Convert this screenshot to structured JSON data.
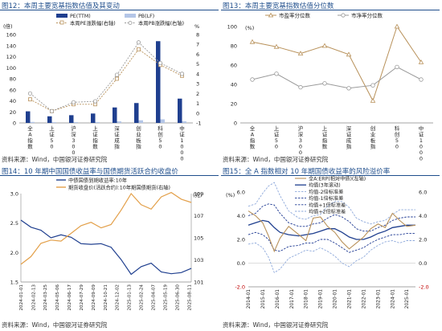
{
  "panels": {
    "p12": {
      "title": "图12：本周主要宽基指数估值及其变动",
      "source": "资料来源：Wind，中国银河证券研究院"
    },
    "p13": {
      "title": "图13：本周主要宽基指数估值分位数",
      "source": "资料来源：Wind，中国银河证券研究院"
    },
    "p14": {
      "title": "图14：10 年期中国国债收益率与国债期货活跃合约收盘价",
      "source": "资料来源：Wind，中国银河证券研究院"
    },
    "p15": {
      "title": "图15：全 A 指数相对 10 年期国债收益率的风险溢价率",
      "source": "资料来源：Wind，中国银河证券研究院"
    }
  },
  "colors": {
    "navy": "#1f3f8f",
    "lightblue": "#b4c6e7",
    "gold": "#b8915a",
    "gray": "#9a9a9a",
    "orange": "#e3a04a",
    "red": "#c00000",
    "dashnavy": "#1f3a93",
    "dashlight": "#8ea9db"
  },
  "chart_data": [
    {
      "id": "p12",
      "type": "bar",
      "categories": [
        "全A指数",
        "上证50",
        "沪深300",
        "上证指数",
        "深证成指",
        "创业板指",
        "科创50",
        "中证1000"
      ],
      "ylabel_left": "(倍)",
      "ylabel_right": "%",
      "ylim": [
        0,
        160
      ],
      "yticks": [
        0,
        20,
        40,
        60,
        80,
        100,
        120,
        140,
        160
      ],
      "y2lim": [
        -1,
        8
      ],
      "y2ticks": [
        -1,
        0,
        1,
        2,
        3,
        4,
        5,
        6,
        7,
        8
      ],
      "legend": [
        "PE(TTM)",
        "PB(LF)",
        "本周PE涨跌幅(右轴)",
        "本周PB涨跌幅(右轴)"
      ],
      "series": [
        {
          "name": "PE(TTM)",
          "values": [
            21,
            12,
            14,
            17,
            28,
            36,
            148,
            44
          ]
        },
        {
          "name": "PB(LF)",
          "values": [
            1.8,
            1.3,
            1.5,
            1.6,
            2.8,
            4.8,
            6.5,
            2.8
          ]
        },
        {
          "name": "本周PE涨跌幅(右轴)",
          "values": [
            1.4,
            0.2,
            0.9,
            0.9,
            3.5,
            6.5,
            4.9,
            3.8
          ]
        },
        {
          "name": "本周PB涨跌幅(右轴)",
          "values": [
            2.0,
            0.2,
            1.1,
            1.2,
            3.9,
            7.2,
            5.1,
            4.0
          ]
        }
      ]
    },
    {
      "id": "p13",
      "type": "line",
      "categories": [
        "全A指数",
        "上证50",
        "沪深300",
        "上证指数",
        "深证成指",
        "创业板指",
        "科创50",
        "中证1000"
      ],
      "ylabel": "(%)",
      "ylim": [
        0,
        100
      ],
      "yticks": [
        0,
        20,
        40,
        60,
        80,
        100
      ],
      "legend": [
        "市盈率分位数",
        "市净率分位数"
      ],
      "series": [
        {
          "name": "市盈率分位数",
          "values": [
            84,
            79,
            72,
            80,
            71,
            23,
            100,
            63
          ]
        },
        {
          "name": "市净率分位数",
          "values": [
            45,
            51,
            37,
            41,
            36,
            39,
            58,
            45
          ]
        }
      ]
    },
    {
      "id": "p14",
      "type": "line",
      "x": [
        "2024-01-01",
        "2024-02-05",
        "2024-03-11",
        "2024-04-15",
        "2024-05-20",
        "2024-06-24",
        "2024-07-29",
        "2024-09-02",
        "2024-10-07",
        "2024-11-11",
        "2024-12-16",
        "2025-01-20",
        "2025-02-24",
        "2025-03-31",
        "2025-05-05",
        "2025-06-09",
        "2025-07-14",
        "2025-08-18"
      ],
      "xticklabels": [
        "2024-01-01",
        "2024-02-13",
        "2024-03-25",
        "2024-05-06",
        "2024-06-17",
        "2024-07-29",
        "2024-09-09",
        "2024-10-21",
        "2024-12-02",
        "2025-01-13",
        "2025-02-24",
        "2025-04-07",
        "2025-05-19",
        "2025-06-30",
        "2025-08-11"
      ],
      "ylabel_right": "(元)",
      "ylim": [
        1.5,
        3.0
      ],
      "yticks": [
        1.5,
        2.0,
        2.5,
        3.0
      ],
      "y2lim": [
        101,
        109
      ],
      "y2ticks": [
        101,
        103,
        105,
        107,
        109
      ],
      "legend": [
        "中债国债到期收益率:10年",
        "期货收盘价(活跃合约):10年期国债期货(右轴)"
      ],
      "series": [
        {
          "name": "中债国债到期收益率:10年",
          "values": [
            2.55,
            2.43,
            2.38,
            2.25,
            2.3,
            2.26,
            2.15,
            2.14,
            2.15,
            2.09,
            1.88,
            1.63,
            1.76,
            1.82,
            1.67,
            1.64,
            1.66,
            1.73
          ]
        },
        {
          "name": "期货收盘价(活跃合约):10年期国债期货(右轴)",
          "values": [
            102.6,
            103.3,
            104.5,
            104.8,
            104.7,
            105.4,
            106.1,
            106.4,
            105.9,
            106.2,
            107.5,
            109.0,
            108.0,
            107.6,
            108.7,
            109.1,
            108.5,
            108.2
          ]
        }
      ]
    },
    {
      "id": "p15",
      "type": "line",
      "x": [
        2014.0,
        2014.5,
        2015.0,
        2015.4,
        2015.8,
        2016.2,
        2016.8,
        2017.5,
        2018.0,
        2018.5,
        2019.0,
        2019.5,
        2020.0,
        2020.5,
        2021.0,
        2021.5,
        2022.0,
        2022.5,
        2023.0,
        2023.5,
        2024.0,
        2024.5,
        2025.0,
        2025.6
      ],
      "xticklabels": [
        "2014-01",
        "2015-01",
        "2016-01",
        "2017-01",
        "2018-01",
        "2019-01",
        "2020-01",
        "2021-01",
        "2022-01",
        "2023-01",
        "2024-01",
        "2025-01"
      ],
      "ylabel_left": "(%)",
      "ylim": [
        -2.0,
        6.0
      ],
      "yticks": [
        -2.0,
        0.0,
        2.0,
        4.0,
        6.0
      ],
      "y2lim": [
        -2.0,
        6.0
      ],
      "y2ticks": [
        -2.0,
        0.0,
        2.0,
        4.0,
        6.0
      ],
      "legend": [
        "全A:ERP(相对中债)(左轴)",
        "均值(3年滚动)",
        "均值-2倍标准差",
        "均值-1倍标准差",
        "均值+1倍标准差",
        "均值+2倍标准差"
      ],
      "series": [
        {
          "name": "全A:ERP(相对中债)(左轴)",
          "values": [
            4.4,
            4.0,
            3.4,
            2.3,
            1.0,
            2.1,
            3.1,
            2.4,
            1.9,
            3.8,
            3.9,
            3.1,
            2.6,
            1.8,
            1.2,
            1.7,
            2.2,
            2.9,
            3.3,
            3.0,
            4.2,
            3.6,
            3.1,
            3.2
          ]
        },
        {
          "name": "均值(3年滚动)",
          "values": [
            3.2,
            3.4,
            3.6,
            3.5,
            3.0,
            2.6,
            2.4,
            2.3,
            2.4,
            2.5,
            2.7,
            2.9,
            2.9,
            2.6,
            2.2,
            2.0,
            2.0,
            2.2,
            2.5,
            2.7,
            3.0,
            3.1,
            3.2,
            3.2
          ]
        },
        {
          "name": "均值-2倍标准差",
          "values": [
            1.6,
            1.7,
            1.3,
            0.5,
            -0.8,
            -0.5,
            0.4,
            0.8,
            1.1,
            1.0,
            1.3,
            1.0,
            0.6,
            0.0,
            -0.3,
            0.2,
            0.5,
            1.1,
            1.5,
            1.8,
            1.9,
            1.7,
            1.9,
            1.9
          ]
        },
        {
          "name": "均值-1倍标准差",
          "values": [
            2.4,
            2.6,
            2.4,
            2.0,
            1.1,
            1.0,
            1.4,
            1.5,
            1.7,
            1.7,
            2.0,
            2.0,
            1.7,
            1.3,
            0.9,
            1.1,
            1.3,
            1.7,
            2.0,
            2.2,
            2.4,
            2.4,
            2.5,
            2.5
          ]
        },
        {
          "name": "均值+1倍标准差",
          "values": [
            4.0,
            4.2,
            4.8,
            5.0,
            4.9,
            4.2,
            3.4,
            3.1,
            3.1,
            3.3,
            3.4,
            3.8,
            4.1,
            3.9,
            3.5,
            2.9,
            2.7,
            2.7,
            3.0,
            3.2,
            3.6,
            3.8,
            3.9,
            3.9
          ]
        },
        {
          "name": "均值+2倍标准差",
          "values": [
            4.8,
            5.0,
            5.9,
            6.5,
            6.8,
            5.7,
            4.4,
            3.8,
            3.7,
            4.0,
            4.1,
            4.8,
            5.2,
            5.2,
            4.7,
            3.8,
            3.5,
            3.3,
            3.5,
            3.6,
            4.1,
            4.5,
            4.5,
            4.5
          ]
        }
      ]
    }
  ]
}
